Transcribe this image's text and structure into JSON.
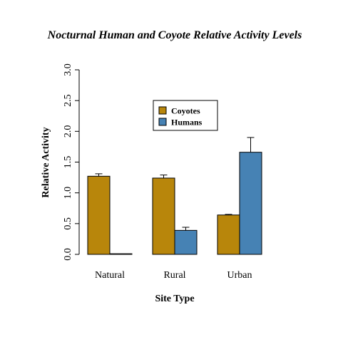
{
  "chart_data": {
    "type": "bar",
    "title": "Nocturnal Human and Coyote Relative Activity Levels",
    "xlabel": "Site Type",
    "ylabel": "Relative Activity",
    "categories": [
      "Natural",
      "Rural",
      "Urban"
    ],
    "series": [
      {
        "name": "Coyotes",
        "color": "#B8860B",
        "values": [
          1.27,
          1.24,
          0.64
        ],
        "errors": [
          0.04,
          0.05,
          0.01
        ]
      },
      {
        "name": "Humans",
        "color": "#4682B4",
        "values": [
          0.01,
          0.39,
          1.66
        ],
        "errors": [
          0.0,
          0.05,
          0.24
        ]
      }
    ],
    "ylim": [
      0,
      3.0
    ],
    "yticks": [
      "0.0",
      "0.5",
      "1.0",
      "1.5",
      "2.0",
      "2.5",
      "3.0"
    ],
    "legend_position": "top-center",
    "grid": false
  }
}
